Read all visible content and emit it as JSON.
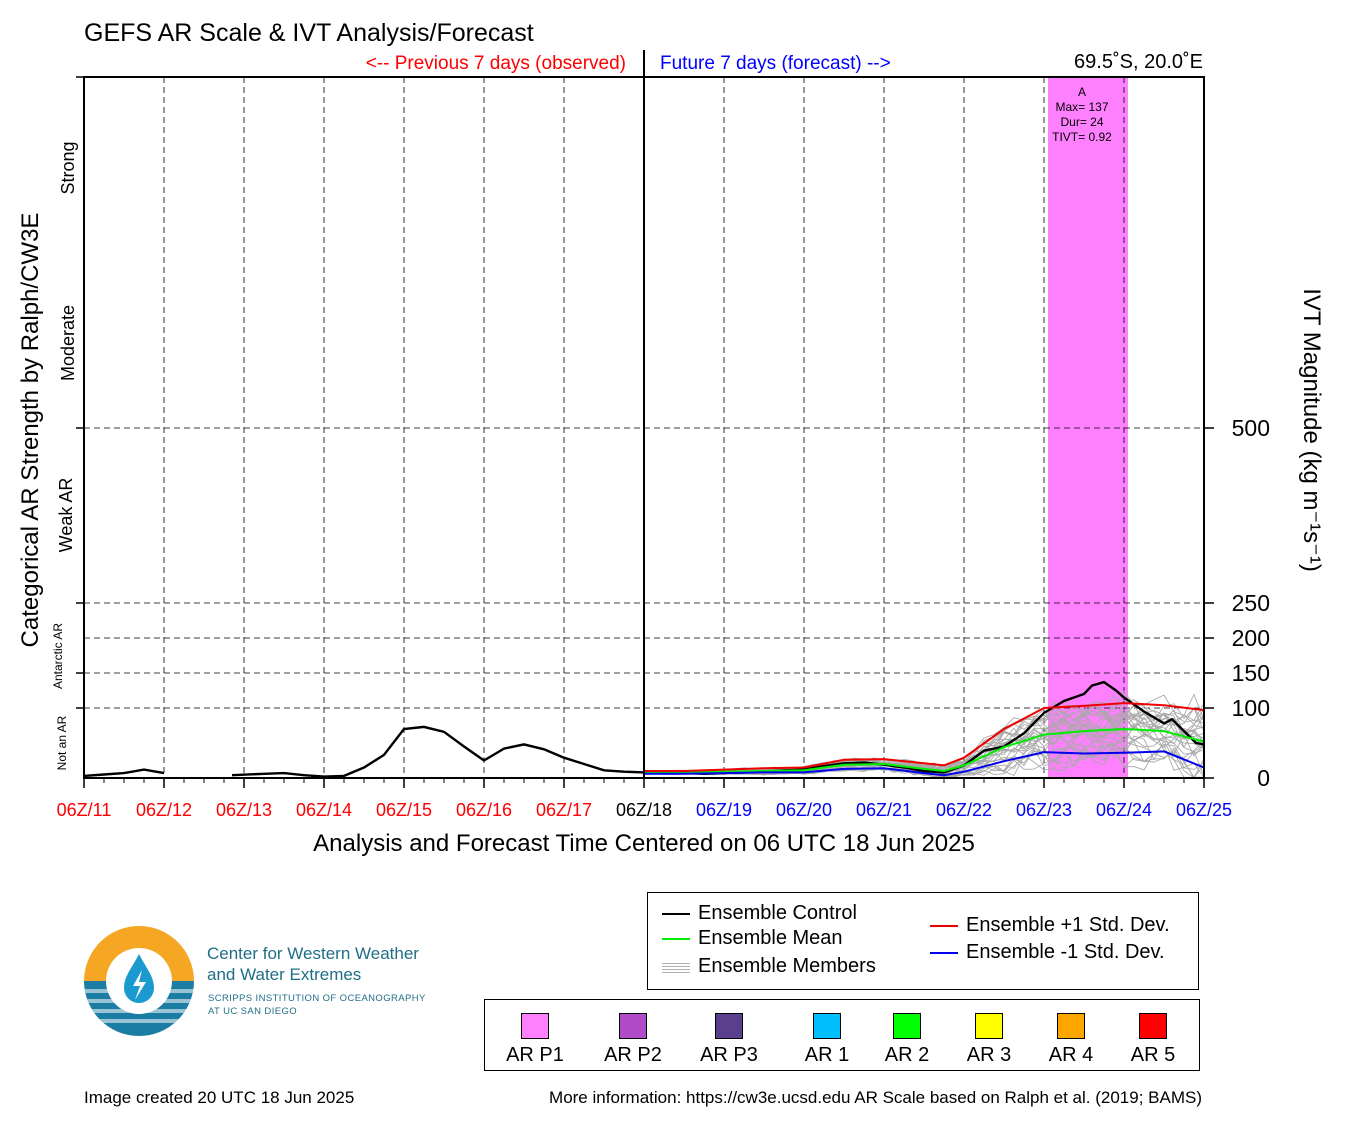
{
  "chart_data": {
    "type": "line",
    "title": "GEFS AR Scale & IVT Analysis/Forecast",
    "subtitle_left": "<-- Previous 7 days (observed)",
    "subtitle_right": "Future 7 days (forecast) -->",
    "location": "69.5˚S, 20.0˚E",
    "xlabel": "Analysis and Forecast Time Centered on 06 UTC 18 Jun 2025",
    "ylabel_left": "Categorical AR Strength by Ralph/CW3E",
    "ylabel_right": "IVT Magnitude (kg m⁻¹s⁻¹)",
    "x_ticks": [
      "06Z/11",
      "06Z/12",
      "06Z/13",
      "06Z/14",
      "06Z/15",
      "06Z/16",
      "06Z/17",
      "06Z/18",
      "06Z/19",
      "06Z/20",
      "06Z/21",
      "06Z/22",
      "06Z/23",
      "06Z/24",
      "06Z/25"
    ],
    "x_tick_colors": [
      "#ff0000",
      "#ff0000",
      "#ff0000",
      "#ff0000",
      "#ff0000",
      "#ff0000",
      "#ff0000",
      "#000000",
      "#0000ff",
      "#0000ff",
      "#0000ff",
      "#0000ff",
      "#0000ff",
      "#0000ff",
      "#0000ff"
    ],
    "x_range_days": [
      0,
      14
    ],
    "y_ticks": [
      0,
      100,
      150,
      200,
      250,
      500
    ],
    "y_range": [
      0,
      1000
    ],
    "y_scale": "piecewise (0-250 compressed categories, 500 weak AR threshold)",
    "categories_left": [
      {
        "label": "Not an AR"
      },
      {
        "label": "Antarctic AR"
      },
      {
        "label": "Weak AR"
      },
      {
        "label": "Moderate"
      },
      {
        "label": "Strong"
      }
    ],
    "ar_event": {
      "label": "A",
      "max": "Max= 137",
      "dur": "Dur= 24",
      "tivt": "TIVT= 0.92",
      "start_day": 12.05,
      "end_day": 13.05,
      "color": "#ff80ff"
    },
    "series": [
      {
        "name": "Ensemble Control",
        "color": "#000000",
        "points": [
          [
            0,
            3
          ],
          [
            0.25,
            5
          ],
          [
            0.5,
            7
          ],
          [
            0.75,
            12
          ],
          [
            1.0,
            7
          ],
          [
            null,
            null
          ],
          [
            1.85,
            4
          ],
          [
            2.25,
            6
          ],
          [
            2.5,
            7
          ],
          [
            2.75,
            4
          ],
          [
            3.0,
            2
          ],
          [
            3.25,
            3
          ],
          [
            3.5,
            15
          ],
          [
            3.75,
            33
          ],
          [
            4.0,
            70
          ],
          [
            4.25,
            73
          ],
          [
            4.5,
            66
          ],
          [
            4.75,
            45
          ],
          [
            5.0,
            25
          ],
          [
            5.25,
            42
          ],
          [
            5.5,
            48
          ],
          [
            5.75,
            41
          ],
          [
            6.0,
            29
          ],
          [
            6.25,
            20
          ],
          [
            6.5,
            11
          ],
          [
            6.75,
            9
          ],
          [
            7.0,
            8
          ],
          [
            7.25,
            8
          ],
          [
            7.5,
            7
          ],
          [
            7.75,
            6
          ],
          [
            8.0,
            7
          ],
          [
            8.25,
            8
          ],
          [
            8.5,
            9
          ],
          [
            8.75,
            11
          ],
          [
            9.0,
            12
          ],
          [
            9.25,
            17
          ],
          [
            9.5,
            21
          ],
          [
            9.75,
            22
          ],
          [
            10.0,
            19
          ],
          [
            10.25,
            15
          ],
          [
            10.5,
            10
          ],
          [
            10.75,
            8
          ],
          [
            11.0,
            18
          ],
          [
            11.25,
            39
          ],
          [
            11.5,
            45
          ],
          [
            11.75,
            64
          ],
          [
            12.0,
            93
          ],
          [
            12.25,
            110
          ],
          [
            12.5,
            120
          ],
          [
            12.6,
            132
          ],
          [
            12.75,
            137
          ],
          [
            12.9,
            125
          ],
          [
            13.0,
            115
          ],
          [
            13.25,
            95
          ],
          [
            13.5,
            78
          ],
          [
            13.6,
            84
          ],
          [
            13.75,
            67
          ],
          [
            13.9,
            50
          ],
          [
            14.0,
            48
          ]
        ]
      },
      {
        "name": "Ensemble Mean",
        "color": "#00ee00",
        "points": [
          [
            7.0,
            8
          ],
          [
            7.5,
            8
          ],
          [
            8.0,
            9
          ],
          [
            8.5,
            10
          ],
          [
            9.0,
            11
          ],
          [
            9.5,
            19
          ],
          [
            10.0,
            20
          ],
          [
            10.5,
            13
          ],
          [
            10.75,
            10
          ],
          [
            11.0,
            18
          ],
          [
            11.5,
            44
          ],
          [
            12.0,
            62
          ],
          [
            12.5,
            67
          ],
          [
            13.0,
            70
          ],
          [
            13.5,
            67
          ],
          [
            14.0,
            52
          ]
        ]
      },
      {
        "name": "Ensemble +1 Std. Dev.",
        "color": "#ee0000",
        "points": [
          [
            7.0,
            10
          ],
          [
            7.5,
            10
          ],
          [
            8.0,
            12
          ],
          [
            8.5,
            14
          ],
          [
            9.0,
            15
          ],
          [
            9.5,
            26
          ],
          [
            10.0,
            27
          ],
          [
            10.5,
            21
          ],
          [
            10.75,
            18
          ],
          [
            11.0,
            29
          ],
          [
            11.5,
            70
          ],
          [
            12.0,
            100
          ],
          [
            12.5,
            103
          ],
          [
            13.0,
            107
          ],
          [
            13.5,
            104
          ],
          [
            14.0,
            97
          ]
        ]
      },
      {
        "name": "Ensemble -1 Std. Dev.",
        "color": "#0000ee",
        "points": [
          [
            7.0,
            6
          ],
          [
            7.5,
            6
          ],
          [
            8.0,
            7
          ],
          [
            8.5,
            8
          ],
          [
            9.0,
            8
          ],
          [
            9.5,
            13
          ],
          [
            10.0,
            14
          ],
          [
            10.5,
            7
          ],
          [
            10.75,
            4
          ],
          [
            11.0,
            9
          ],
          [
            11.5,
            24
          ],
          [
            12.0,
            37
          ],
          [
            12.5,
            35
          ],
          [
            13.0,
            36
          ],
          [
            13.5,
            38
          ],
          [
            14.0,
            15
          ]
        ]
      }
    ],
    "ensemble_members_name": "Ensemble Members",
    "legend": [
      "Ensemble Control",
      "Ensemble Mean",
      "Ensemble Members",
      "Ensemble +1 Std. Dev.",
      "Ensemble -1 Std. Dev."
    ],
    "grid": true
  },
  "ar_scale_legend": [
    {
      "label": "AR P1",
      "color": "#ff80ff"
    },
    {
      "label": "AR P2",
      "color": "#b24bc8"
    },
    {
      "label": "AR P3",
      "color": "#5a3f8c"
    },
    {
      "label": "AR 1",
      "color": "#00bfff"
    },
    {
      "label": "AR 2",
      "color": "#00ff00"
    },
    {
      "label": "AR 3",
      "color": "#ffff00"
    },
    {
      "label": "AR 4",
      "color": "#ffa500"
    },
    {
      "label": "AR 5",
      "color": "#ff0000"
    }
  ],
  "logo": {
    "line1": "Center for Western Weather",
    "line2": "and Water Extremes",
    "sub1": "SCRIPPS INSTITUTION OF OCEANOGRAPHY",
    "sub2": "AT UC SAN DIEGO"
  },
  "footer": {
    "created": "Image created 20 UTC 18 Jun 2025",
    "info": "More information: https://cw3e.ucsd.edu AR Scale based on Ralph et al. (2019; BAMS)"
  }
}
